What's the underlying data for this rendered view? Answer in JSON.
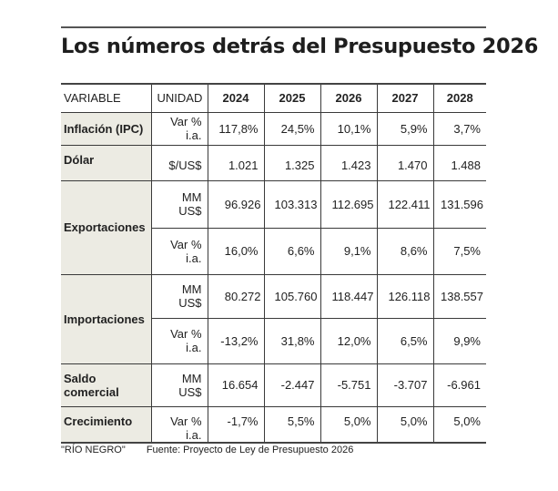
{
  "title": "Los números detrás del Presupuesto 2026",
  "table": {
    "headers": {
      "variable": "VARIABLE",
      "unidad": "UNIDAD",
      "years": [
        "2024",
        "2025",
        "2026",
        "2027",
        "2028"
      ]
    },
    "rows": {
      "inflacion": {
        "variable": "Inflación (IPC)",
        "unidad": "Var % i.a.",
        "values": [
          "117,8%",
          "24,5%",
          "10,1%",
          "5,9%",
          "3,7%"
        ]
      },
      "dolar": {
        "variable": "Dólar",
        "unidad": "$/US$",
        "values": [
          "1.021",
          "1.325",
          "1.423",
          "1.470",
          "1.488"
        ]
      },
      "exportaciones": {
        "variable": "Exportaciones",
        "monto": {
          "unidad": "MM US$",
          "values": [
            "96.926",
            "103.313",
            "112.695",
            "122.411",
            "131.596"
          ]
        },
        "var": {
          "unidad": "Var % i.a.",
          "values": [
            "16,0%",
            "6,6%",
            "9,1%",
            "8,6%",
            "7,5%"
          ]
        }
      },
      "importaciones": {
        "variable": "Importaciones",
        "monto": {
          "unidad": "MM US$",
          "values": [
            "80.272",
            "105.760",
            "118.447",
            "126.118",
            "138.557"
          ]
        },
        "var": {
          "unidad": "Var % i.a.",
          "values": [
            "-13,2%",
            "31,8%",
            "12,0%",
            "6,5%",
            "9,9%"
          ]
        }
      },
      "saldo": {
        "variable_line1": "Saldo",
        "variable_line2": "comercial",
        "unidad": "MM US$",
        "values": [
          "16.654",
          "-2.447",
          "-5.751",
          "-3.707",
          "-6.961"
        ]
      },
      "crecimiento": {
        "variable": "Crecimiento",
        "unidad": "Var % i.a.",
        "values": [
          "-1,7%",
          "5,5%",
          "5,0%",
          "5,0%",
          "5,0%"
        ]
      }
    }
  },
  "footer": {
    "credit": "\"RÍO NEGRO\"",
    "source": "Fuente: Proyecto de Ley de Presupuesto 2026"
  }
}
